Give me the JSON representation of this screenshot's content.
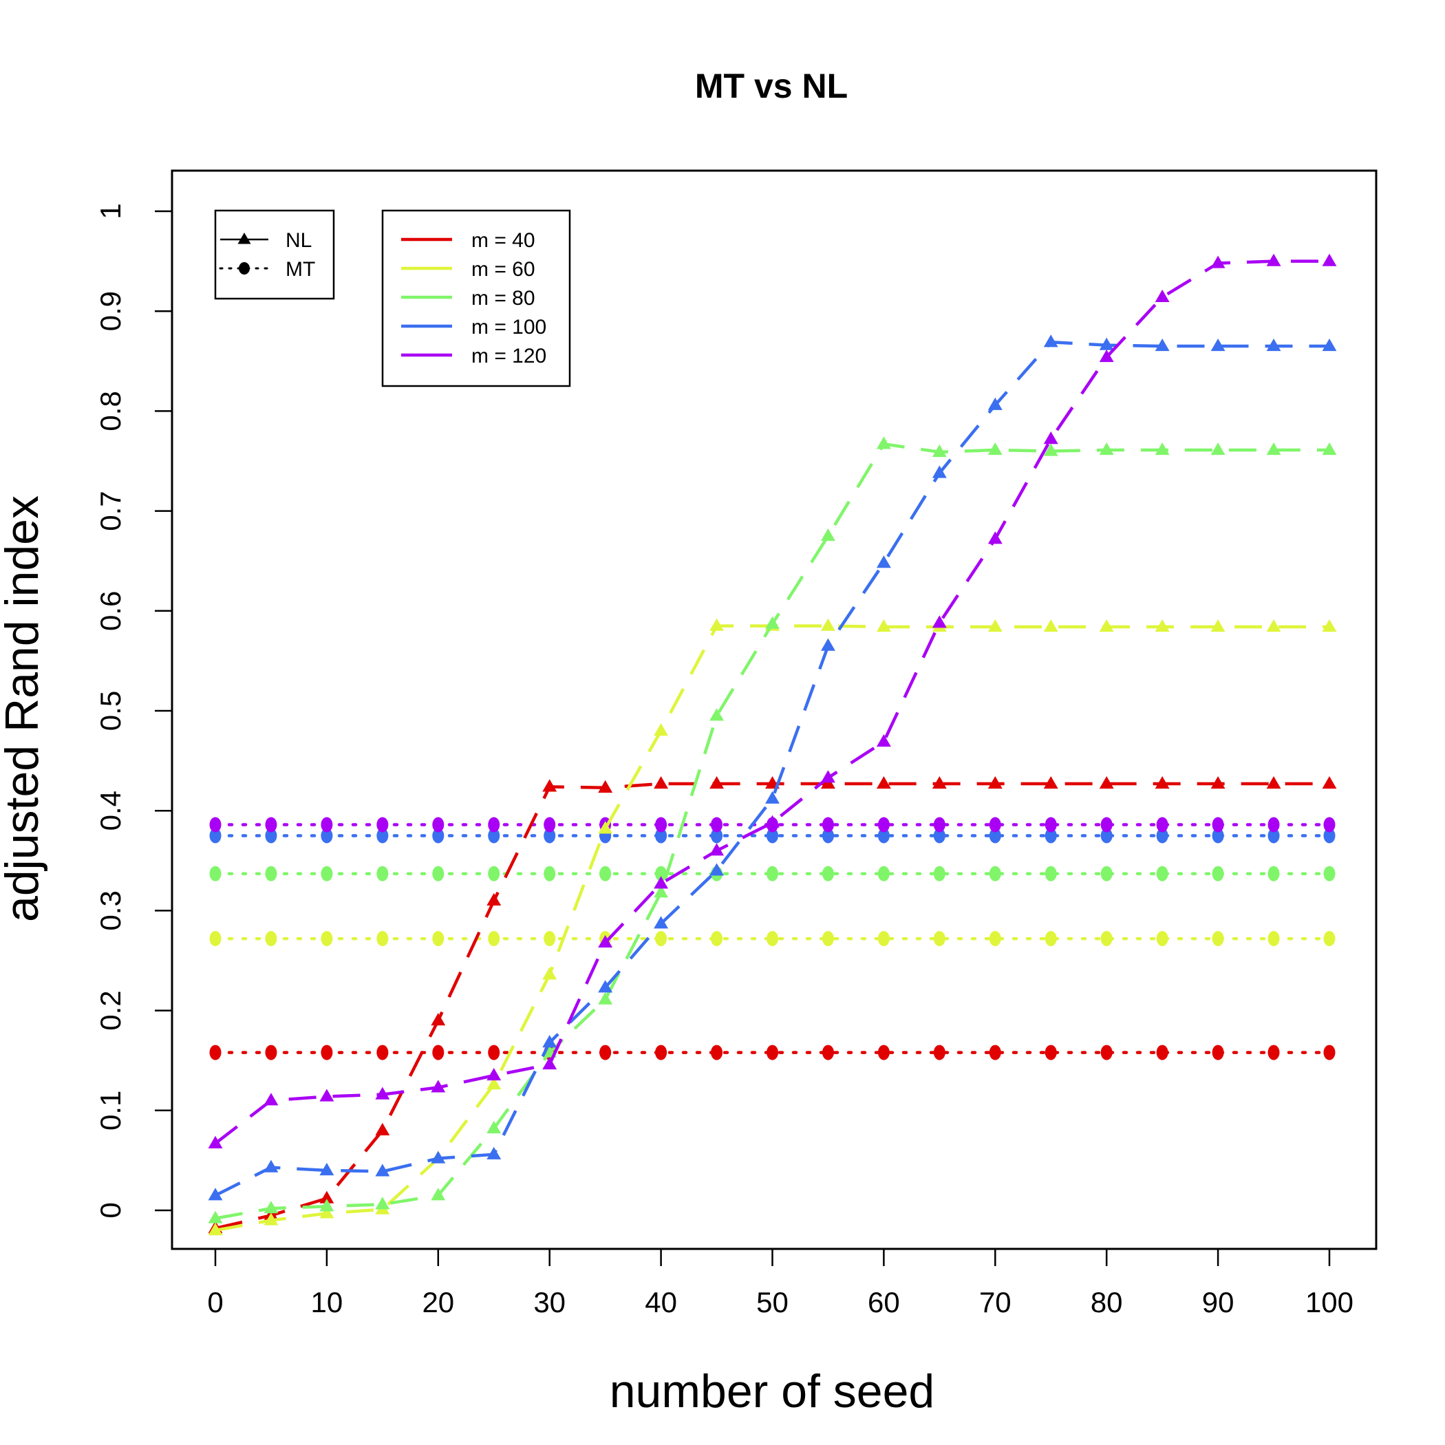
{
  "chart_data": {
    "type": "line",
    "title": "MT vs NL",
    "xlabel": "number of seed",
    "ylabel": "adjusted Rand index",
    "xlim": [
      0,
      100
    ],
    "ylim": [
      0,
      1
    ],
    "x_ticks": [
      0,
      10,
      20,
      30,
      40,
      50,
      60,
      70,
      80,
      90,
      100
    ],
    "x_tick_labels": [
      "0",
      "10",
      "20",
      "30",
      "40",
      "50",
      "60",
      "70",
      "80",
      "90",
      "100"
    ],
    "y_ticks": [
      0,
      0.1,
      0.2,
      0.3,
      0.4,
      0.5,
      0.6,
      0.7,
      0.8,
      0.9,
      1
    ],
    "y_tick_labels": [
      "0",
      "0.1",
      "0.2",
      "0.3",
      "0.4",
      "0.5",
      "0.6",
      "0.7",
      "0.8",
      "0.9",
      "1"
    ],
    "x": [
      0,
      5,
      10,
      15,
      20,
      25,
      30,
      35,
      40,
      45,
      50,
      55,
      60,
      65,
      70,
      75,
      80,
      85,
      90,
      95,
      100
    ],
    "method_legend": [
      {
        "label": "NL",
        "style": "dashed",
        "marker": "triangle"
      },
      {
        "label": "MT",
        "style": "dotted",
        "marker": "circle"
      }
    ],
    "m_legend": [
      {
        "label": "m = 40",
        "color": "#e00000"
      },
      {
        "label": "m = 60",
        "color": "#dff53b"
      },
      {
        "label": "m = 80",
        "color": "#80f56a"
      },
      {
        "label": "m = 100",
        "color": "#3a6ff0"
      },
      {
        "label": "m = 120",
        "color": "#a900f5"
      }
    ],
    "series": [
      {
        "name": "MT m = 40",
        "method": "MT",
        "color": "#e00000",
        "values": [
          0.158,
          0.158,
          0.158,
          0.158,
          0.158,
          0.158,
          0.158,
          0.158,
          0.158,
          0.158,
          0.158,
          0.158,
          0.158,
          0.158,
          0.158,
          0.158,
          0.158,
          0.158,
          0.158,
          0.158,
          0.158
        ]
      },
      {
        "name": "MT m = 60",
        "method": "MT",
        "color": "#dff53b",
        "values": [
          0.272,
          0.272,
          0.272,
          0.272,
          0.272,
          0.272,
          0.272,
          0.272,
          0.272,
          0.272,
          0.272,
          0.272,
          0.272,
          0.272,
          0.272,
          0.272,
          0.272,
          0.272,
          0.272,
          0.272,
          0.272
        ]
      },
      {
        "name": "MT m = 80",
        "method": "MT",
        "color": "#80f56a",
        "values": [
          0.337,
          0.337,
          0.337,
          0.337,
          0.337,
          0.337,
          0.337,
          0.337,
          0.337,
          0.337,
          0.337,
          0.337,
          0.337,
          0.337,
          0.337,
          0.337,
          0.337,
          0.337,
          0.337,
          0.337,
          0.337
        ]
      },
      {
        "name": "MT m = 100",
        "method": "MT",
        "color": "#3a6ff0",
        "values": [
          0.375,
          0.375,
          0.375,
          0.375,
          0.375,
          0.375,
          0.375,
          0.375,
          0.375,
          0.375,
          0.375,
          0.375,
          0.375,
          0.375,
          0.375,
          0.375,
          0.375,
          0.375,
          0.375,
          0.375,
          0.375
        ]
      },
      {
        "name": "MT m = 120",
        "method": "MT",
        "color": "#a900f5",
        "values": [
          0.386,
          0.386,
          0.386,
          0.386,
          0.386,
          0.386,
          0.386,
          0.386,
          0.386,
          0.386,
          0.386,
          0.386,
          0.386,
          0.386,
          0.386,
          0.386,
          0.386,
          0.386,
          0.386,
          0.386,
          0.386
        ]
      },
      {
        "name": "NL m = 40",
        "method": "NL",
        "color": "#e00000",
        "values": [
          -0.018,
          -0.005,
          0.012,
          0.08,
          0.19,
          0.31,
          0.424,
          0.423,
          0.427,
          0.427,
          0.427,
          0.427,
          0.427,
          0.427,
          0.427,
          0.427,
          0.427,
          0.427,
          0.427,
          0.427,
          0.427
        ]
      },
      {
        "name": "NL m = 60",
        "method": "NL",
        "color": "#dff53b",
        "values": [
          -0.02,
          -0.01,
          -0.003,
          0.001,
          0.052,
          0.126,
          0.236,
          0.382,
          0.48,
          0.585,
          0.585,
          0.585,
          0.584,
          0.584,
          0.584,
          0.584,
          0.584,
          0.584,
          0.584,
          0.584,
          0.584
        ]
      },
      {
        "name": "NL m = 80",
        "method": "NL",
        "color": "#80f56a",
        "values": [
          -0.008,
          0.002,
          0.004,
          0.006,
          0.015,
          0.082,
          0.158,
          0.211,
          0.318,
          0.495,
          0.587,
          0.675,
          0.767,
          0.759,
          0.761,
          0.76,
          0.761,
          0.761,
          0.761,
          0.761,
          0.761
        ]
      },
      {
        "name": "NL m = 100",
        "method": "NL",
        "color": "#3a6ff0",
        "values": [
          0.015,
          0.043,
          0.04,
          0.039,
          0.052,
          0.056,
          0.168,
          0.223,
          0.287,
          0.34,
          0.412,
          0.565,
          0.648,
          0.738,
          0.806,
          0.869,
          0.866,
          0.865,
          0.865,
          0.865,
          0.865
        ]
      },
      {
        "name": "NL m = 120",
        "method": "NL",
        "color": "#a900f5",
        "values": [
          0.067,
          0.11,
          0.114,
          0.116,
          0.123,
          0.135,
          0.146,
          0.268,
          0.327,
          0.36,
          0.388,
          0.433,
          0.469,
          0.588,
          0.672,
          0.772,
          0.854,
          0.914,
          0.948,
          0.95,
          0.95
        ]
      }
    ]
  }
}
